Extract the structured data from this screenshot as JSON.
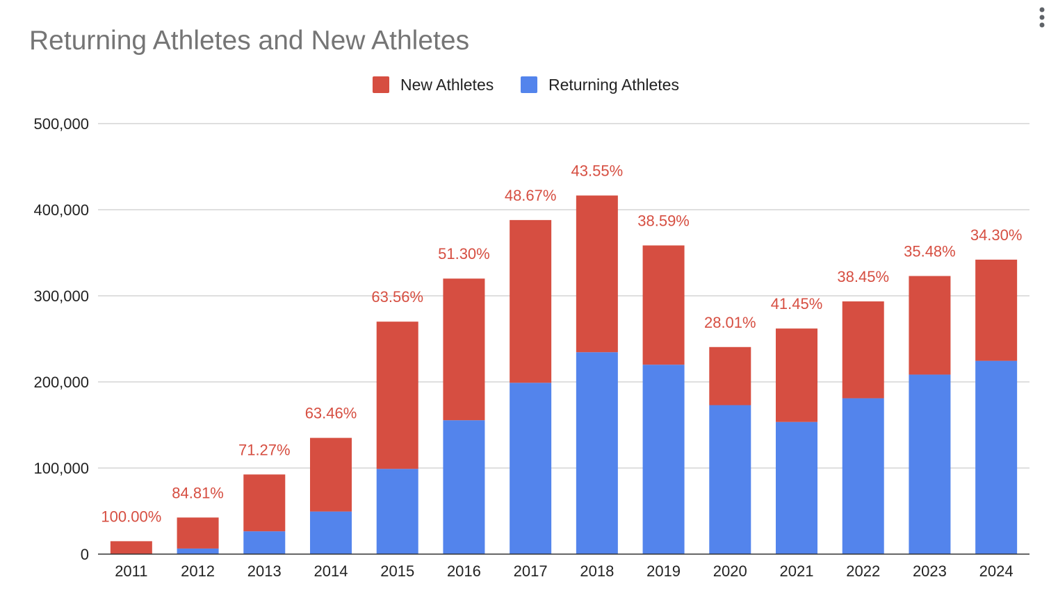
{
  "chart_data": {
    "type": "bar",
    "stacked": true,
    "title": "Returning Athletes and New Athletes",
    "legend": [
      "New Athletes",
      "Returning Athletes"
    ],
    "legend_position": "top-center",
    "categories": [
      "2011",
      "2012",
      "2013",
      "2014",
      "2015",
      "2016",
      "2017",
      "2018",
      "2019",
      "2020",
      "2021",
      "2022",
      "2023",
      "2024"
    ],
    "series": [
      {
        "name": "Returning Athletes",
        "color": "#5384EC",
        "values": [
          0,
          6500,
          26500,
          49500,
          99000,
          155500,
          199000,
          234500,
          220000,
          173000,
          153500,
          181000,
          208500,
          224500
        ]
      },
      {
        "name": "New Athletes",
        "color": "#D64E41",
        "values": [
          15000,
          36000,
          66000,
          85500,
          171000,
          164500,
          189000,
          182000,
          138500,
          67500,
          108500,
          112500,
          114500,
          117500
        ]
      }
    ],
    "data_labels": [
      "100.00%",
      "84.81%",
      "71.27%",
      "63.46%",
      "63.56%",
      "51.30%",
      "48.67%",
      "43.55%",
      "38.59%",
      "28.01%",
      "41.45%",
      "38.45%",
      "35.48%",
      "34.30%"
    ],
    "data_label_color": "#D64E41",
    "ylim": [
      0,
      500000
    ],
    "yticks": [
      "0",
      "100,000",
      "200,000",
      "300,000",
      "400,000",
      "500,000"
    ],
    "ytick_values": [
      0,
      100000,
      200000,
      300000,
      400000,
      500000
    ],
    "grid": true,
    "xlabel": "",
    "ylabel": ""
  },
  "menu": {
    "icon": "more-vert-icon"
  }
}
